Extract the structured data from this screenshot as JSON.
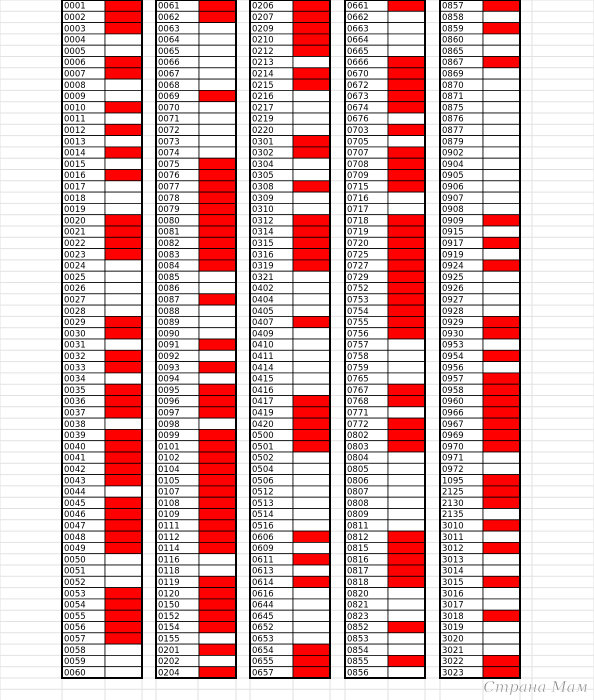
{
  "mark_color": "#ff0000",
  "columns": [
    {
      "codes": [
        "0001",
        "0002",
        "0003",
        "0004",
        "0005",
        "0006",
        "0007",
        "0008",
        "0009",
        "0010",
        "0011",
        "0012",
        "0013",
        "0014",
        "0015",
        "0016",
        "0017",
        "0018",
        "0019",
        "0020",
        "0021",
        "0022",
        "0023",
        "0024",
        "0025",
        "0026",
        "0027",
        "0028",
        "0029",
        "0030",
        "0031",
        "0032",
        "0033",
        "0034",
        "0035",
        "0036",
        "0037",
        "0038",
        "0039",
        "0040",
        "0041",
        "0042",
        "0043",
        "0044",
        "0045",
        "0046",
        "0047",
        "0048",
        "0049",
        "0050",
        "0051",
        "0052",
        "0053",
        "0054",
        "0055",
        "0056",
        "0057",
        "0058",
        "0059",
        "0060"
      ],
      "marked": [
        1,
        1,
        1,
        0,
        0,
        1,
        1,
        0,
        0,
        1,
        0,
        1,
        0,
        1,
        0,
        1,
        0,
        0,
        0,
        1,
        1,
        1,
        1,
        0,
        0,
        0,
        0,
        0,
        1,
        1,
        0,
        1,
        1,
        0,
        1,
        1,
        1,
        0,
        1,
        1,
        1,
        1,
        1,
        0,
        1,
        1,
        1,
        1,
        1,
        0,
        0,
        0,
        1,
        1,
        1,
        1,
        1,
        0,
        0,
        0
      ]
    },
    {
      "codes": [
        "0061",
        "0062",
        "0063",
        "0064",
        "0065",
        "0066",
        "0067",
        "0068",
        "0069",
        "0070",
        "0071",
        "0072",
        "0073",
        "0074",
        "0075",
        "0076",
        "0077",
        "0078",
        "0079",
        "0080",
        "0081",
        "0082",
        "0083",
        "0084",
        "0085",
        "0086",
        "0087",
        "0088",
        "0089",
        "0090",
        "0091",
        "0092",
        "0093",
        "0094",
        "0095",
        "0096",
        "0097",
        "0098",
        "0099",
        "0101",
        "0102",
        "0104",
        "0105",
        "0107",
        "0108",
        "0109",
        "0111",
        "0112",
        "0114",
        "0116",
        "0118",
        "0119",
        "0120",
        "0150",
        "0152",
        "0154",
        "0155",
        "0201",
        "0202",
        "0204"
      ],
      "marked": [
        1,
        1,
        0,
        0,
        0,
        0,
        0,
        0,
        1,
        0,
        0,
        0,
        0,
        0,
        1,
        1,
        1,
        1,
        1,
        1,
        1,
        1,
        1,
        1,
        0,
        0,
        1,
        0,
        0,
        0,
        1,
        0,
        1,
        0,
        1,
        1,
        1,
        0,
        1,
        1,
        1,
        1,
        1,
        1,
        1,
        1,
        1,
        1,
        1,
        0,
        0,
        1,
        1,
        1,
        1,
        1,
        0,
        1,
        0,
        1
      ]
    },
    {
      "codes": [
        "0206",
        "0207",
        "0209",
        "0210",
        "0212",
        "0213",
        "0214",
        "0215",
        "0216",
        "0217",
        "0219",
        "0220",
        "0301",
        "0302",
        "0304",
        "0305",
        "0308",
        "0309",
        "0310",
        "0312",
        "0314",
        "0315",
        "0316",
        "0319",
        "0321",
        "0402",
        "0404",
        "0405",
        "0407",
        "0409",
        "0410",
        "0411",
        "0414",
        "0415",
        "0416",
        "0417",
        "0419",
        "0420",
        "0500",
        "0501",
        "0502",
        "0504",
        "0506",
        "0512",
        "0513",
        "0514",
        "0516",
        "0606",
        "0609",
        "0611",
        "0613",
        "0614",
        "0616",
        "0644",
        "0645",
        "0652",
        "0653",
        "0654",
        "0655",
        "0657"
      ],
      "marked": [
        1,
        1,
        1,
        1,
        1,
        0,
        1,
        1,
        0,
        0,
        0,
        0,
        1,
        1,
        0,
        0,
        1,
        0,
        0,
        1,
        1,
        1,
        1,
        1,
        0,
        0,
        0,
        0,
        1,
        0,
        0,
        0,
        0,
        0,
        0,
        1,
        1,
        1,
        1,
        1,
        0,
        0,
        0,
        0,
        0,
        0,
        0,
        1,
        0,
        1,
        0,
        1,
        0,
        0,
        0,
        0,
        0,
        1,
        1,
        1
      ]
    },
    {
      "codes": [
        "0661",
        "0662",
        "0663",
        "0664",
        "0665",
        "0666",
        "0670",
        "0672",
        "0673",
        "0674",
        "0676",
        "0703",
        "0705",
        "0707",
        "0708",
        "0709",
        "0715",
        "0716",
        "0717",
        "0718",
        "0719",
        "0720",
        "0725",
        "0727",
        "0729",
        "0752",
        "0753",
        "0754",
        "0755",
        "0756",
        "0757",
        "0758",
        "0759",
        "0765",
        "0767",
        "0768",
        "0771",
        "0772",
        "0802",
        "0803",
        "0804",
        "0805",
        "0806",
        "0807",
        "0808",
        "0809",
        "0811",
        "0812",
        "0815",
        "0816",
        "0817",
        "0818",
        "0820",
        "0821",
        "0823",
        "0852",
        "0853",
        "0854",
        "0855",
        "0856"
      ],
      "marked": [
        1,
        0,
        0,
        0,
        0,
        1,
        1,
        1,
        1,
        1,
        0,
        1,
        0,
        1,
        1,
        1,
        1,
        0,
        0,
        1,
        1,
        1,
        1,
        1,
        1,
        1,
        1,
        1,
        1,
        1,
        0,
        0,
        0,
        0,
        1,
        1,
        0,
        1,
        1,
        1,
        0,
        0,
        0,
        0,
        0,
        0,
        0,
        1,
        1,
        1,
        1,
        1,
        0,
        0,
        0,
        1,
        0,
        0,
        1,
        0
      ]
    },
    {
      "codes": [
        "0857",
        "0858",
        "0859",
        "0860",
        "0865",
        "0867",
        "0869",
        "0870",
        "0871",
        "0875",
        "0876",
        "0877",
        "0879",
        "0902",
        "0904",
        "0905",
        "0906",
        "0907",
        "0908",
        "0909",
        "0915",
        "0917",
        "0919",
        "0924",
        "0925",
        "0926",
        "0927",
        "0928",
        "0929",
        "0930",
        "0953",
        "0954",
        "0956",
        "0957",
        "0958",
        "0960",
        "0966",
        "0967",
        "0969",
        "0970",
        "0971",
        "0972",
        "1095",
        "2125",
        "2130",
        "2135",
        "3010",
        "3011",
        "3012",
        "3013",
        "3014",
        "3015",
        "3016",
        "3017",
        "3018",
        "3019",
        "3020",
        "3021",
        "3022",
        "3023"
      ],
      "marked": [
        1,
        0,
        1,
        0,
        0,
        1,
        0,
        0,
        0,
        0,
        0,
        0,
        0,
        0,
        0,
        0,
        0,
        0,
        0,
        1,
        0,
        1,
        0,
        1,
        0,
        0,
        0,
        0,
        1,
        1,
        0,
        1,
        0,
        1,
        1,
        1,
        1,
        1,
        1,
        1,
        0,
        0,
        1,
        1,
        1,
        0,
        1,
        0,
        1,
        0,
        0,
        1,
        0,
        0,
        1,
        0,
        0,
        0,
        1,
        1
      ]
    }
  ],
  "watermark": "Страна Мам"
}
